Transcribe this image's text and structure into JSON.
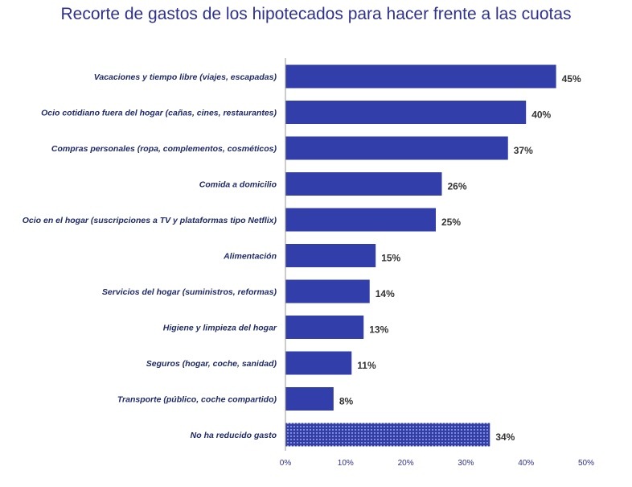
{
  "title": "Recorte de gastos de los hipotecados para hacer frente a las cuotas",
  "colors": {
    "bar": "#323fab",
    "title": "#2e3192",
    "axis": "#9a9a9a"
  },
  "chart_data": {
    "type": "bar",
    "orientation": "horizontal",
    "title": "Recorte de gastos de los hipotecados para hacer frente a las cuotas",
    "categories": [
      "Vacaciones y tiempo libre (viajes, escapadas)",
      "Ocio cotidiano fuera del hogar (cañas, cines, restaurantes)",
      "Compras personales (ropa, complementos, cosméticos)",
      "Comida a domicilio",
      "Ocio en el hogar (suscripciones a TV y plataformas tipo Netflix)",
      "Alimentación",
      "Servicios del hogar (suministros, reformas)",
      "Higiene y limpieza del hogar",
      "Seguros (hogar, coche, sanidad)",
      "Transporte (público, coche compartido)",
      "No ha reducido gasto"
    ],
    "values": [
      45,
      40,
      37,
      26,
      25,
      15,
      14,
      13,
      11,
      8,
      34
    ],
    "value_labels": [
      "45%",
      "40%",
      "37%",
      "26%",
      "25%",
      "15%",
      "14%",
      "13%",
      "11%",
      "8%",
      "34%"
    ],
    "patterned": [
      false,
      false,
      false,
      false,
      false,
      false,
      false,
      false,
      false,
      false,
      true
    ],
    "xlim": [
      0,
      50
    ],
    "xticks": [
      0,
      10,
      20,
      30,
      40,
      50
    ],
    "xtick_labels": [
      "0%",
      "10%",
      "20%",
      "30%",
      "40%",
      "50%"
    ],
    "xlabel": "",
    "ylabel": "",
    "grid": false,
    "legend": "none"
  }
}
